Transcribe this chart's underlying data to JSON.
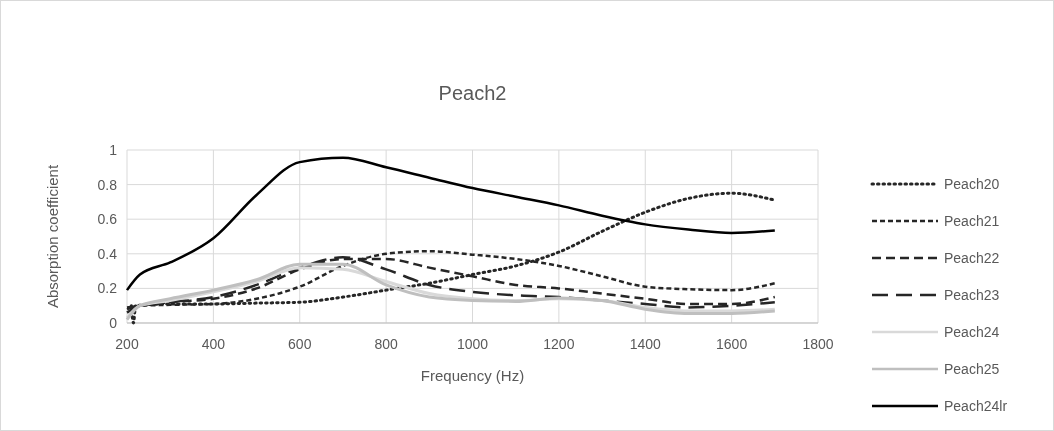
{
  "chart_data": {
    "type": "line",
    "title": "Peach2",
    "xlabel": "Frequency (Hz)",
    "ylabel": "Absorption coefficient",
    "xlim": [
      200,
      1800
    ],
    "xticks": [
      200,
      400,
      600,
      800,
      1000,
      1200,
      1400,
      1600,
      1800
    ],
    "ylim": [
      0,
      1
    ],
    "yticks": [
      0,
      0.2,
      0.4,
      0.6,
      0.8,
      1
    ],
    "grid": true,
    "legend": "right",
    "marker": "none",
    "x": [
      200,
      230,
      300,
      400,
      500,
      600,
      700,
      800,
      900,
      1000,
      1100,
      1200,
      1300,
      1400,
      1500,
      1600,
      1700
    ],
    "series": [
      {
        "name": "Peach20",
        "color": "#262626",
        "line_style": "dotted",
        "x": [
          210,
          215,
          220,
          300,
          400,
          500,
          600,
          700,
          800,
          900,
          1000,
          1100,
          1200,
          1300,
          1400,
          1500,
          1600,
          1700
        ],
        "values": [
          0.1,
          0,
          0.1,
          0.11,
          0.11,
          0.115,
          0.12,
          0.15,
          0.19,
          0.23,
          0.28,
          0.33,
          0.41,
          0.53,
          0.64,
          0.72,
          0.75,
          0.71
        ]
      },
      {
        "name": "Peach21",
        "color": "#262626",
        "line_style": "dashed",
        "values": [
          0.08,
          0.1,
          0.105,
          0.11,
          0.14,
          0.21,
          0.33,
          0.4,
          0.415,
          0.395,
          0.37,
          0.33,
          0.27,
          0.21,
          0.195,
          0.19,
          0.23
        ]
      },
      {
        "name": "Peach22",
        "color": "#262626",
        "line_style": "dashed",
        "values": [
          0.09,
          0.1,
          0.12,
          0.14,
          0.2,
          0.31,
          0.37,
          0.37,
          0.32,
          0.27,
          0.22,
          0.2,
          0.17,
          0.14,
          0.11,
          0.11,
          0.15
        ]
      },
      {
        "name": "Peach23",
        "color": "#262626",
        "line_style": "dashed",
        "values": [
          0.06,
          0.1,
          0.12,
          0.15,
          0.22,
          0.32,
          0.38,
          0.31,
          0.22,
          0.18,
          0.16,
          0.15,
          0.13,
          0.11,
          0.09,
          0.1,
          0.12
        ]
      },
      {
        "name": "Peach24",
        "color": "#d9d9d9",
        "line_style": "solid",
        "values": [
          0.03,
          0.1,
          0.13,
          0.18,
          0.24,
          0.32,
          0.31,
          0.24,
          0.17,
          0.14,
          0.13,
          0.14,
          0.13,
          0.09,
          0.07,
          0.07,
          0.08
        ]
      },
      {
        "name": "Peach25",
        "color": "#bfbfbf",
        "line_style": "solid",
        "values": [
          0.02,
          0.1,
          0.14,
          0.19,
          0.25,
          0.34,
          0.34,
          0.22,
          0.15,
          0.13,
          0.125,
          0.145,
          0.13,
          0.08,
          0.055,
          0.055,
          0.07
        ]
      },
      {
        "name": "Peach24lr",
        "color": "#000000",
        "line_style": "solid",
        "values": [
          0.19,
          0.28,
          0.35,
          0.49,
          0.74,
          0.93,
          0.955,
          0.9,
          0.84,
          0.78,
          0.73,
          0.68,
          0.62,
          0.57,
          0.54,
          0.52,
          0.535
        ]
      }
    ]
  }
}
